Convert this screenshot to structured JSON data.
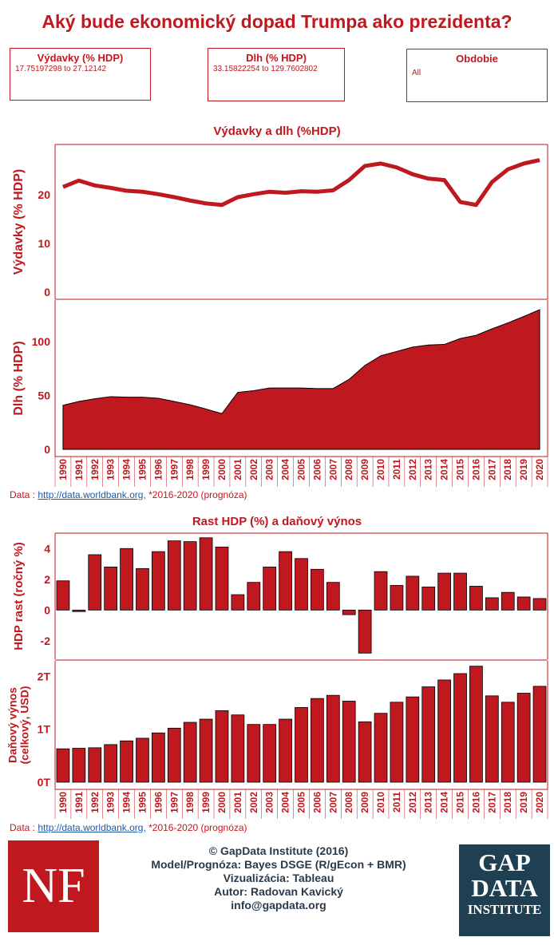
{
  "title": "Aký bude ekonomický dopad Trumpa ako prezidenta?",
  "filters": [
    {
      "label": "Výdavky (% HDP)",
      "value": "17.75197298 to 27.12142"
    },
    {
      "label": "Dlh (% HDP)",
      "value": "33.15822254 to 129.7602802"
    },
    {
      "label": "Obdobie",
      "value": "All"
    }
  ],
  "section1_title": "Výdavky a dlh (%HDP)",
  "section2_title": "Rast HDP (%) a daňový výnos",
  "source": {
    "prefix": "Data : ",
    "link": "http://data.worldbank.org,",
    "note": " *2016-2020 (prognóza)"
  },
  "footer": {
    "line1": "© GapData Institute (2016)",
    "line2": "Model/Prognóza: Bayes DSGE (R/gEcon + BMR)",
    "line3": "Vizualizácia: Tableau",
    "line4": "Autor: Radovan Kavický",
    "line5": "info@gapdata.org"
  },
  "logos": {
    "nf": "NF",
    "gap1": "GAP",
    "gap2": "DATA",
    "gap3": "INSTITUTE"
  },
  "colors": {
    "accent": "#c0181f",
    "bar": "#c0181f",
    "line": "#c0181f",
    "brand_dark": "#1f3f52"
  },
  "chart_data": [
    {
      "type": "line",
      "ylabel": "Výdavky (% HDP)",
      "x": [
        1990,
        1991,
        1992,
        1993,
        1994,
        1995,
        1996,
        1997,
        1998,
        1999,
        2000,
        2001,
        2002,
        2003,
        2004,
        2005,
        2006,
        2007,
        2008,
        2009,
        2010,
        2011,
        2012,
        2013,
        2014,
        2015,
        2016,
        2017,
        2018,
        2019,
        2020
      ],
      "values": [
        21.6,
        22.9,
        21.9,
        21.4,
        20.8,
        20.6,
        20.1,
        19.5,
        18.8,
        18.2,
        17.9,
        19.5,
        20.1,
        20.6,
        20.4,
        20.7,
        20.6,
        20.9,
        23.0,
        25.9,
        26.4,
        25.6,
        24.2,
        23.3,
        23.0,
        18.5,
        17.9,
        22.6,
        25.2,
        26.4,
        27.1
      ],
      "yticks": [
        "0",
        "10",
        "20"
      ],
      "ylim": [
        0,
        29
      ]
    },
    {
      "type": "area",
      "ylabel": "Dlh (% HDP)",
      "x": [
        1990,
        1991,
        1992,
        1993,
        1994,
        1995,
        1996,
        1997,
        1998,
        1999,
        2000,
        2001,
        2002,
        2003,
        2004,
        2005,
        2006,
        2007,
        2008,
        2009,
        2010,
        2011,
        2012,
        2013,
        2014,
        2015,
        2016,
        2017,
        2018,
        2019,
        2020
      ],
      "values": [
        41,
        44.5,
        47,
        49,
        48.5,
        48.5,
        47.5,
        44.5,
        41.5,
        37.5,
        33.2,
        53,
        54.5,
        57,
        57,
        57,
        56.5,
        56.5,
        65,
        78,
        87,
        91,
        95,
        97,
        97.5,
        103,
        106,
        112,
        117.5,
        123.5,
        129.8
      ],
      "yticks": [
        "0",
        "50",
        "100"
      ],
      "ylim": [
        0,
        135
      ]
    },
    {
      "type": "bar",
      "ylabel": "HDP rast (ročný %)",
      "categories": [
        "1990",
        "1991",
        "1992",
        "1993",
        "1994",
        "1995",
        "1996",
        "1997",
        "1998",
        "1999",
        "2000",
        "2001",
        "2002",
        "2003",
        "2004",
        "2005",
        "2006",
        "2007",
        "2008",
        "2009",
        "2010",
        "2011",
        "2012",
        "2013",
        "2014",
        "2015",
        "2016",
        "2017",
        "2018",
        "2019",
        "2020"
      ],
      "values": [
        1.9,
        -0.1,
        3.6,
        2.8,
        4.0,
        2.7,
        3.8,
        4.5,
        4.45,
        4.7,
        4.1,
        1.0,
        1.8,
        2.8,
        3.8,
        3.35,
        2.65,
        1.8,
        -0.3,
        -2.8,
        2.5,
        1.6,
        2.2,
        1.5,
        2.4,
        2.4,
        1.55,
        0.8,
        1.15,
        0.85,
        0.75
      ],
      "yticks": [
        "-2",
        "0",
        "2",
        "4"
      ],
      "ylim": [
        -3.2,
        5.0
      ]
    },
    {
      "type": "bar",
      "ylabel": "Daňový výnos (celkový, USD)",
      "categories": [
        "1990",
        "1991",
        "1992",
        "1993",
        "1994",
        "1995",
        "1996",
        "1997",
        "1998",
        "1999",
        "2000",
        "2001",
        "2002",
        "2003",
        "2004",
        "2005",
        "2006",
        "2007",
        "2008",
        "2009",
        "2010",
        "2011",
        "2012",
        "2013",
        "2014",
        "2015",
        "2016",
        "2017",
        "2018",
        "2019",
        "2020"
      ],
      "values": [
        0.63,
        0.64,
        0.65,
        0.71,
        0.78,
        0.83,
        0.93,
        1.02,
        1.13,
        1.19,
        1.35,
        1.27,
        1.09,
        1.09,
        1.19,
        1.41,
        1.58,
        1.64,
        1.53,
        1.14,
        1.3,
        1.51,
        1.61,
        1.8,
        1.93,
        2.05,
        2.19,
        1.63,
        1.51,
        1.68,
        1.81
      ],
      "yticks": [
        "0T",
        "1T",
        "2T"
      ],
      "ylim": [
        0,
        2.2
      ]
    }
  ]
}
